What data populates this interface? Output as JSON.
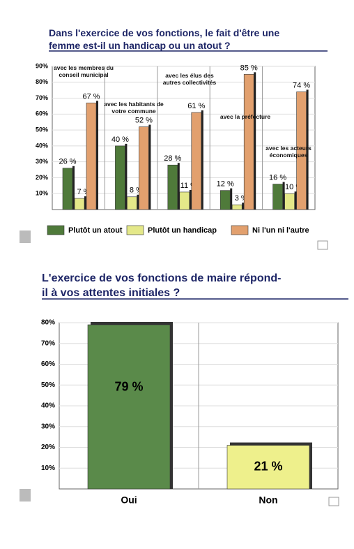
{
  "chart_data": [
    {
      "type": "bar",
      "title": "Dans l'exercice de vos fonctions, le fait d'être une femme est-il un handicap ou un atout ?",
      "categories": [
        "avec les membres du conseil municipal",
        "avec les habitants de votre commune",
        "avec les élus des autres collectivités",
        "avec la préfecture",
        "avec les acteurs économiques"
      ],
      "series": [
        {
          "name": "Plutôt un atout",
          "color": "#4f7a3a",
          "values": [
            26,
            40,
            28,
            12,
            16
          ],
          "value_labels": [
            "26 %",
            "40 %",
            "28 %",
            "12 %",
            "16 %"
          ]
        },
        {
          "name": "Plutôt un handicap",
          "color": "#e4e889",
          "values": [
            7,
            8,
            11,
            3,
            10
          ],
          "value_labels": [
            "7 %",
            "8 %",
            "11 %",
            "3 %",
            "10 %"
          ]
        },
        {
          "name": "Ni l'un ni l'autre",
          "color": "#e2a06e",
          "values": [
            67,
            52,
            61,
            85,
            74
          ],
          "value_labels": [
            "67 %",
            "52 %",
            "61 %",
            "85 %",
            "74 %"
          ]
        }
      ],
      "ylim": [
        0,
        90
      ],
      "yticks": [
        {
          "value": 10,
          "label": "10%"
        },
        {
          "value": 20,
          "label": "20%"
        },
        {
          "value": 30,
          "label": "30%"
        },
        {
          "value": 40,
          "label": "40%"
        },
        {
          "value": 50,
          "label": "50%"
        },
        {
          "value": 60,
          "label": "60%"
        },
        {
          "value": 70,
          "label": "70%"
        },
        {
          "value": 80,
          "label": "80%"
        },
        {
          "value": 90,
          "label": "90%"
        }
      ],
      "grid": true
    },
    {
      "type": "bar",
      "title": "L'exercice de vos fonctions de maire répond-il à vos attentes initiales ?",
      "categories": [
        "Oui",
        "Non"
      ],
      "values": [
        79,
        21
      ],
      "value_labels": [
        "79 %",
        "21 %"
      ],
      "colors": [
        "#5a8a4a",
        "#eef08c"
      ],
      "ylim": [
        0,
        80
      ],
      "yticks": [
        {
          "value": 10,
          "label": "10%"
        },
        {
          "value": 20,
          "label": "20%"
        },
        {
          "value": 30,
          "label": "30%"
        },
        {
          "value": 40,
          "label": "40%"
        },
        {
          "value": 50,
          "label": "50%"
        },
        {
          "value": 60,
          "label": "60%"
        },
        {
          "value": 70,
          "label": "70%"
        },
        {
          "value": 80,
          "label": "80%"
        }
      ],
      "grid": true
    }
  ]
}
